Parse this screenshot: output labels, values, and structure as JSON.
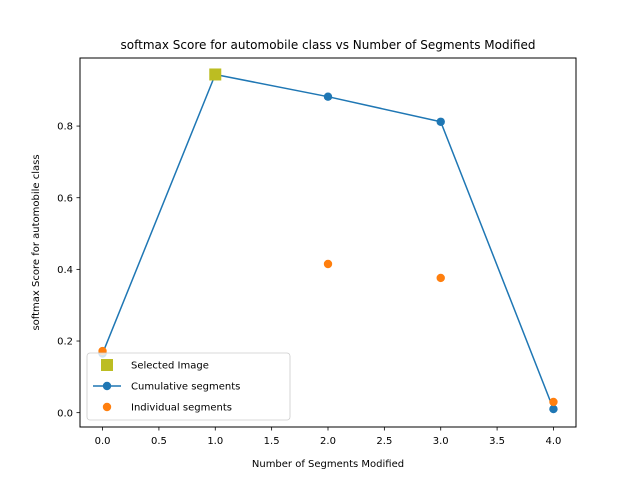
{
  "chart_data": {
    "type": "line",
    "title": "softmax Score for automobile class vs Number of Segments Modified",
    "xlabel": "Number of Segments Modified",
    "ylabel": "softmax Score for automobile class",
    "xlim": [
      -0.2,
      4.2
    ],
    "ylim": [
      -0.04,
      0.99
    ],
    "xticks": [
      0.0,
      0.5,
      1.0,
      1.5,
      2.0,
      2.5,
      3.0,
      3.5,
      4.0
    ],
    "xtick_labels": [
      "0.0",
      "0.5",
      "1.0",
      "1.5",
      "2.0",
      "2.5",
      "3.0",
      "3.5",
      "4.0"
    ],
    "yticks": [
      0.0,
      0.2,
      0.4,
      0.6,
      0.8
    ],
    "ytick_labels": [
      "0.0",
      "0.2",
      "0.4",
      "0.6",
      "0.8"
    ],
    "grid": false,
    "legend_position": "lower-left",
    "series": [
      {
        "name": "Selected Image",
        "kind": "marker-square",
        "color": "#bcbd22",
        "x": [
          1
        ],
        "y": [
          0.944
        ]
      },
      {
        "name": "Cumulative segments",
        "kind": "line-with-markers",
        "color": "#1f77b4",
        "x": [
          0,
          1,
          2,
          3,
          4
        ],
        "y": [
          0.165,
          0.944,
          0.882,
          0.812,
          0.01
        ]
      },
      {
        "name": "Individual segments",
        "kind": "markers",
        "color": "#ff7f0e",
        "x": [
          0,
          2,
          3,
          4
        ],
        "y": [
          0.172,
          0.415,
          0.376,
          0.03
        ]
      }
    ]
  }
}
